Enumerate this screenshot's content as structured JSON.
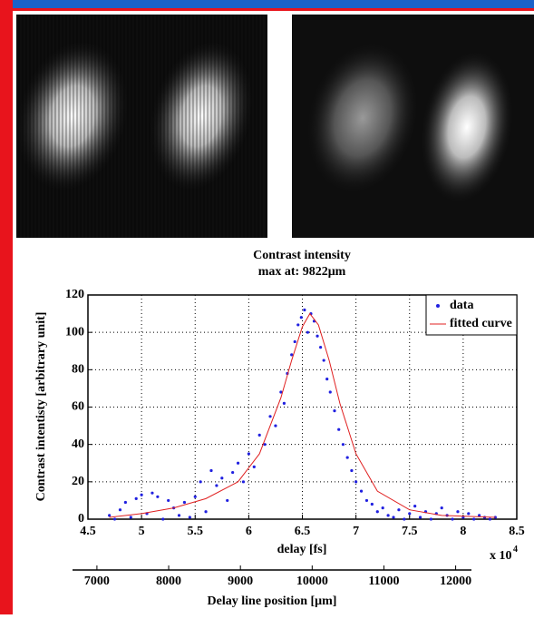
{
  "chart_data": {
    "type": "scatter",
    "title": "Contrast intensity",
    "subtitle": "max at: 9822μm",
    "x_label": "delay [fs]",
    "y_label": "Contrast intentisty [arbitrary unit]",
    "x_multiplier": "x 10",
    "x_multiplier_exponent": "4",
    "xlim": [
      4.5,
      8.5
    ],
    "xticks": [
      4.5,
      5,
      5.5,
      6,
      6.5,
      7,
      7.5,
      8,
      8.5
    ],
    "ylim": [
      0,
      120
    ],
    "yticks": [
      0,
      20,
      40,
      60,
      80,
      100,
      120
    ],
    "grid": true,
    "legend": "upper right",
    "x2lim": [
      6660,
      12220
    ],
    "x2ticks": [
      7000,
      8000,
      9000,
      10000,
      11000,
      12000
    ],
    "x2_label": "Delay line position [μm]",
    "series": [
      {
        "name": "data",
        "color": "#2020e0",
        "type": "scatter",
        "x": [
          4.7,
          4.75,
          4.8,
          4.85,
          4.9,
          4.95,
          5.0,
          5.05,
          5.1,
          5.15,
          5.2,
          5.25,
          5.3,
          5.35,
          5.4,
          5.45,
          5.5,
          5.55,
          5.6,
          5.65,
          5.7,
          5.75,
          5.8,
          5.85,
          5.9,
          5.95,
          6.0,
          6.05,
          6.1,
          6.15,
          6.2,
          6.25,
          6.3,
          6.33,
          6.36,
          6.4,
          6.43,
          6.46,
          6.49,
          6.52,
          6.55,
          6.58,
          6.61,
          6.64,
          6.67,
          6.7,
          6.73,
          6.76,
          6.8,
          6.84,
          6.88,
          6.92,
          6.96,
          7.0,
          7.05,
          7.1,
          7.15,
          7.2,
          7.25,
          7.3,
          7.35,
          7.4,
          7.45,
          7.5,
          7.55,
          7.6,
          7.65,
          7.7,
          7.75,
          7.8,
          7.85,
          7.9,
          7.95,
          8.0,
          8.05,
          8.1,
          8.15,
          8.2,
          8.25,
          8.3
        ],
        "values": [
          2,
          0,
          5,
          9,
          1,
          11,
          13,
          3,
          14,
          12,
          0,
          10,
          6,
          2,
          9,
          1,
          12,
          20,
          4,
          26,
          18,
          22,
          10,
          25,
          30,
          20,
          35,
          28,
          45,
          40,
          55,
          50,
          68,
          62,
          78,
          88,
          95,
          104,
          108,
          112,
          100,
          110,
          106,
          98,
          92,
          85,
          75,
          68,
          58,
          48,
          40,
          33,
          26,
          20,
          15,
          10,
          8,
          4,
          6,
          2,
          1,
          5,
          0,
          3,
          7,
          1,
          4,
          0,
          3,
          6,
          2,
          0,
          4,
          1,
          3,
          0,
          2,
          1,
          0,
          1
        ]
      },
      {
        "name": "fitted curve",
        "color": "#e02020",
        "type": "line",
        "x": [
          4.7,
          5.0,
          5.3,
          5.6,
          5.9,
          6.1,
          6.3,
          6.4,
          6.5,
          6.57,
          6.65,
          6.75,
          6.85,
          7.0,
          7.2,
          7.5,
          7.8,
          8.3
        ],
        "values": [
          1,
          3,
          6,
          11,
          20,
          35,
          65,
          85,
          103,
          110,
          104,
          85,
          62,
          35,
          15,
          5,
          2,
          1
        ]
      }
    ]
  }
}
